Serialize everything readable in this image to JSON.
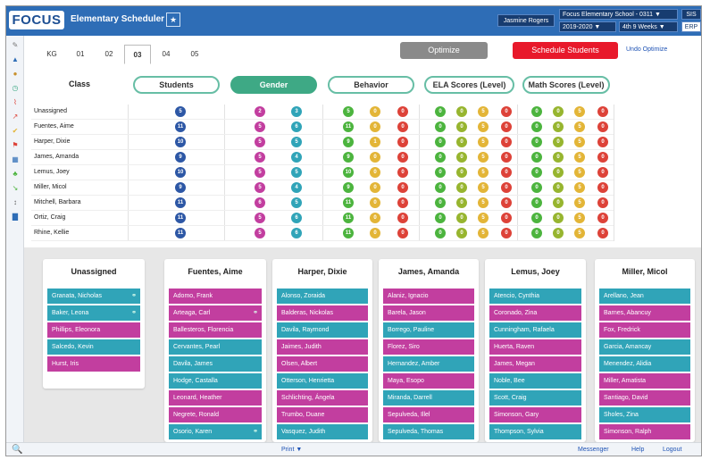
{
  "header": {
    "logo": "FOCUS",
    "app_title": "Elementary Scheduler",
    "star_icon": "★",
    "user": "Jasmine Rogers",
    "school": "Focus Elementary School - 0311 ▼",
    "year": "2019-2020 ▼",
    "term": "4th 9 Weeks ▼",
    "sis": "SIS",
    "erp": "ERP"
  },
  "grades": [
    "KG",
    "01",
    "02",
    "03",
    "04",
    "05"
  ],
  "active_grade": "03",
  "toolbar": {
    "optimize": "Optimize",
    "schedule": "Schedule Students",
    "undo": "Undo Optimize"
  },
  "tabs": {
    "class_label": "Class",
    "students": "Students",
    "gender": "Gender",
    "behavior": "Behavior",
    "ela": "ELA Scores (Level)",
    "math": "Math Scores (Level)"
  },
  "colors": {
    "blue": "#2d57a5",
    "magenta": "#c23e9f",
    "teal": "#30a4b8",
    "green": "#4cb43e",
    "olive": "#97b52f",
    "yellow": "#e3b537",
    "red": "#dd4238"
  },
  "rows": [
    {
      "name": "Unassigned",
      "students": "5",
      "gender": [
        "2",
        "3"
      ],
      "behavior": [
        "5",
        "0",
        "0"
      ],
      "ela": [
        "0",
        "0",
        "5",
        "0"
      ],
      "math": [
        "0",
        "0",
        "5",
        "0"
      ]
    },
    {
      "name": "Fuentes, Aime",
      "students": "11",
      "gender": [
        "5",
        "6"
      ],
      "behavior": [
        "11",
        "0",
        "0"
      ],
      "ela": [
        "0",
        "0",
        "5",
        "0"
      ],
      "math": [
        "0",
        "0",
        "5",
        "0"
      ]
    },
    {
      "name": "Harper, Dixie",
      "students": "10",
      "gender": [
        "5",
        "5"
      ],
      "behavior": [
        "9",
        "1",
        "0"
      ],
      "ela": [
        "0",
        "0",
        "5",
        "0"
      ],
      "math": [
        "0",
        "0",
        "5",
        "0"
      ]
    },
    {
      "name": "James, Amanda",
      "students": "9",
      "gender": [
        "5",
        "4"
      ],
      "behavior": [
        "9",
        "0",
        "0"
      ],
      "ela": [
        "0",
        "0",
        "5",
        "0"
      ],
      "math": [
        "0",
        "0",
        "5",
        "0"
      ]
    },
    {
      "name": "Lemus, Joey",
      "students": "10",
      "gender": [
        "5",
        "5"
      ],
      "behavior": [
        "10",
        "0",
        "0"
      ],
      "ela": [
        "0",
        "0",
        "5",
        "0"
      ],
      "math": [
        "0",
        "0",
        "5",
        "0"
      ]
    },
    {
      "name": "Miller, Micol",
      "students": "9",
      "gender": [
        "5",
        "4"
      ],
      "behavior": [
        "9",
        "0",
        "0"
      ],
      "ela": [
        "0",
        "0",
        "5",
        "0"
      ],
      "math": [
        "0",
        "0",
        "5",
        "0"
      ]
    },
    {
      "name": "Mitchell, Barbara",
      "students": "11",
      "gender": [
        "6",
        "5"
      ],
      "behavior": [
        "11",
        "0",
        "0"
      ],
      "ela": [
        "0",
        "0",
        "5",
        "0"
      ],
      "math": [
        "0",
        "0",
        "5",
        "0"
      ]
    },
    {
      "name": "Ortiz, Craig",
      "students": "11",
      "gender": [
        "5",
        "6"
      ],
      "behavior": [
        "11",
        "0",
        "0"
      ],
      "ela": [
        "0",
        "0",
        "5",
        "0"
      ],
      "math": [
        "0",
        "0",
        "5",
        "0"
      ]
    },
    {
      "name": "Rhine, Kellie",
      "students": "11",
      "gender": [
        "5",
        "6"
      ],
      "behavior": [
        "11",
        "0",
        "0"
      ],
      "ela": [
        "0",
        "0",
        "5",
        "0"
      ],
      "math": [
        "0",
        "0",
        "5",
        "0"
      ]
    }
  ],
  "cards": [
    {
      "title": "Unassigned",
      "students": [
        {
          "name": "Granata, Nicholas",
          "color": "teal",
          "linked": true
        },
        {
          "name": "Baker, Leona",
          "color": "teal",
          "linked": true
        },
        {
          "name": "Phillips, Eleonora",
          "color": "mag",
          "linked": false
        },
        {
          "name": "Salcedo, Kevin",
          "color": "teal",
          "linked": false
        },
        {
          "name": "Hurst, Iris",
          "color": "mag",
          "linked": false
        }
      ]
    },
    {
      "title": "Fuentes, Aime",
      "students": [
        {
          "name": "Adomo, Frank",
          "color": "mag",
          "linked": false
        },
        {
          "name": "Arteaga, Carl",
          "color": "mag",
          "linked": true
        },
        {
          "name": "Ballesteros, Florencia",
          "color": "mag",
          "linked": false
        },
        {
          "name": "Cervantes, Pearl",
          "color": "teal",
          "linked": false
        },
        {
          "name": "Davila, James",
          "color": "teal",
          "linked": false
        },
        {
          "name": "Hodge, Castalla",
          "color": "teal",
          "linked": false
        },
        {
          "name": "Leonard, Heather",
          "color": "mag",
          "linked": false
        },
        {
          "name": "Negrete, Ronald",
          "color": "mag",
          "linked": false
        },
        {
          "name": "Osorio, Karen",
          "color": "teal",
          "linked": true
        }
      ]
    },
    {
      "title": "Harper, Dixie",
      "students": [
        {
          "name": "Alonso, Zoraida",
          "color": "teal",
          "linked": false
        },
        {
          "name": "Balderas, Nickolas",
          "color": "mag",
          "linked": false
        },
        {
          "name": "Davila, Raymond",
          "color": "teal",
          "linked": false
        },
        {
          "name": "Jaimes, Judith",
          "color": "mag",
          "linked": false
        },
        {
          "name": "Olsen, Albert",
          "color": "mag",
          "linked": false
        },
        {
          "name": "Otterson, Henrietta",
          "color": "teal",
          "linked": false
        },
        {
          "name": "Schlichting, Ángela",
          "color": "mag",
          "linked": false
        },
        {
          "name": "Trumbo, Duane",
          "color": "mag",
          "linked": false
        },
        {
          "name": "Vasquez, Judith",
          "color": "teal",
          "linked": false
        }
      ]
    },
    {
      "title": "James, Amanda",
      "students": [
        {
          "name": "Alaniz, Ignacio",
          "color": "mag",
          "linked": false
        },
        {
          "name": "Barela, Jason",
          "color": "mag",
          "linked": false
        },
        {
          "name": "Borrego, Pauline",
          "color": "teal",
          "linked": false
        },
        {
          "name": "Florez, Siro",
          "color": "mag",
          "linked": false
        },
        {
          "name": "Hernandez, Amber",
          "color": "teal",
          "linked": false
        },
        {
          "name": "Maya, Esopo",
          "color": "mag",
          "linked": false
        },
        {
          "name": "Miranda, Darrell",
          "color": "teal",
          "linked": false
        },
        {
          "name": "Sepulveda, Illel",
          "color": "mag",
          "linked": false
        },
        {
          "name": "Sepulveda, Thomas",
          "color": "teal",
          "linked": false
        }
      ]
    },
    {
      "title": "Lemus, Joey",
      "students": [
        {
          "name": "Atencio, Cynthia",
          "color": "teal",
          "linked": false
        },
        {
          "name": "Coronado, Zina",
          "color": "mag",
          "linked": false
        },
        {
          "name": "Cunningham, Rafaela",
          "color": "teal",
          "linked": false
        },
        {
          "name": "Huerta, Raven",
          "color": "mag",
          "linked": false
        },
        {
          "name": "James, Megan",
          "color": "mag",
          "linked": false
        },
        {
          "name": "Noble, Bee",
          "color": "teal",
          "linked": false
        },
        {
          "name": "Scott, Craig",
          "color": "teal",
          "linked": false
        },
        {
          "name": "Simonson, Gary",
          "color": "mag",
          "linked": false
        },
        {
          "name": "Thompson, Sylvia",
          "color": "teal",
          "linked": false
        }
      ]
    },
    {
      "title": "Miller, Micol",
      "students": [
        {
          "name": "Arellano, Jean",
          "color": "teal",
          "linked": false
        },
        {
          "name": "Barnes, Abancuy",
          "color": "mag",
          "linked": false
        },
        {
          "name": "Fox, Fredrick",
          "color": "mag",
          "linked": false
        },
        {
          "name": "Garcia, Amancay",
          "color": "teal",
          "linked": false
        },
        {
          "name": "Menendez, Alidia",
          "color": "teal",
          "linked": false
        },
        {
          "name": "Miller, Amatista",
          "color": "mag",
          "linked": false
        },
        {
          "name": "Santiago, David",
          "color": "mag",
          "linked": false
        },
        {
          "name": "Sholes, Zina",
          "color": "teal",
          "linked": false
        },
        {
          "name": "Simonson, Ralph",
          "color": "mag",
          "linked": false
        }
      ]
    }
  ],
  "footer": {
    "search_icon": "🔍",
    "print": "Print ▼",
    "messenger": "Messenger",
    "help": "Help",
    "logout": "Logout"
  },
  "sidebar_icons": [
    "pencil-icon",
    "house-icon",
    "users-icon",
    "clock-icon",
    "chart-icon",
    "graph-icon",
    "check-icon",
    "flag-icon",
    "calendar-icon",
    "leaf-icon",
    "arrow-icon",
    "info-icon",
    "bars-icon"
  ]
}
